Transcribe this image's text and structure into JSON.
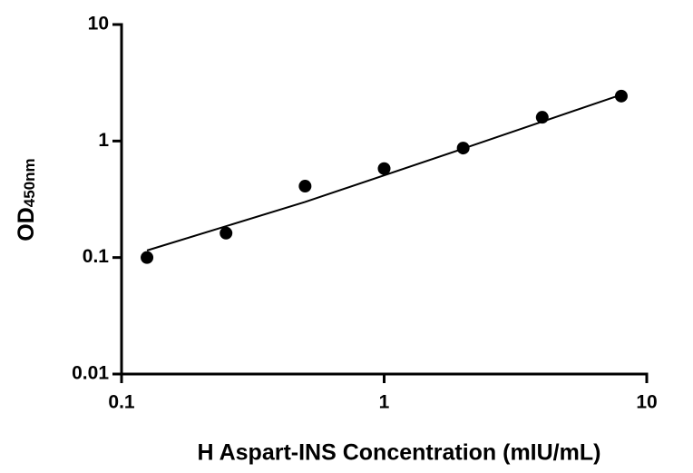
{
  "chart_data": {
    "type": "scatter",
    "x_label": "H Aspart-INS Concentration (mIU/mL)",
    "y_label": "OD",
    "y_label_subscript": "450nm",
    "x_log": true,
    "y_log": true,
    "xlim": [
      0.1,
      10
    ],
    "ylim": [
      0.01,
      10
    ],
    "xticks": [
      0.1,
      1,
      10
    ],
    "yticks": [
      0.01,
      0.1,
      1,
      10
    ],
    "series": [
      {
        "color": "#000000",
        "x": [
          0.125,
          0.25,
          0.5,
          1,
          2,
          4,
          8
        ],
        "values": [
          0.1,
          0.162,
          0.41,
          0.58,
          0.87,
          1.6,
          2.43
        ]
      },
      {
        "color": "#000000",
        "style": "line",
        "x": [
          0.125,
          0.5,
          2,
          8
        ],
        "values": [
          0.115,
          0.3,
          0.86,
          2.5
        ]
      }
    ]
  }
}
